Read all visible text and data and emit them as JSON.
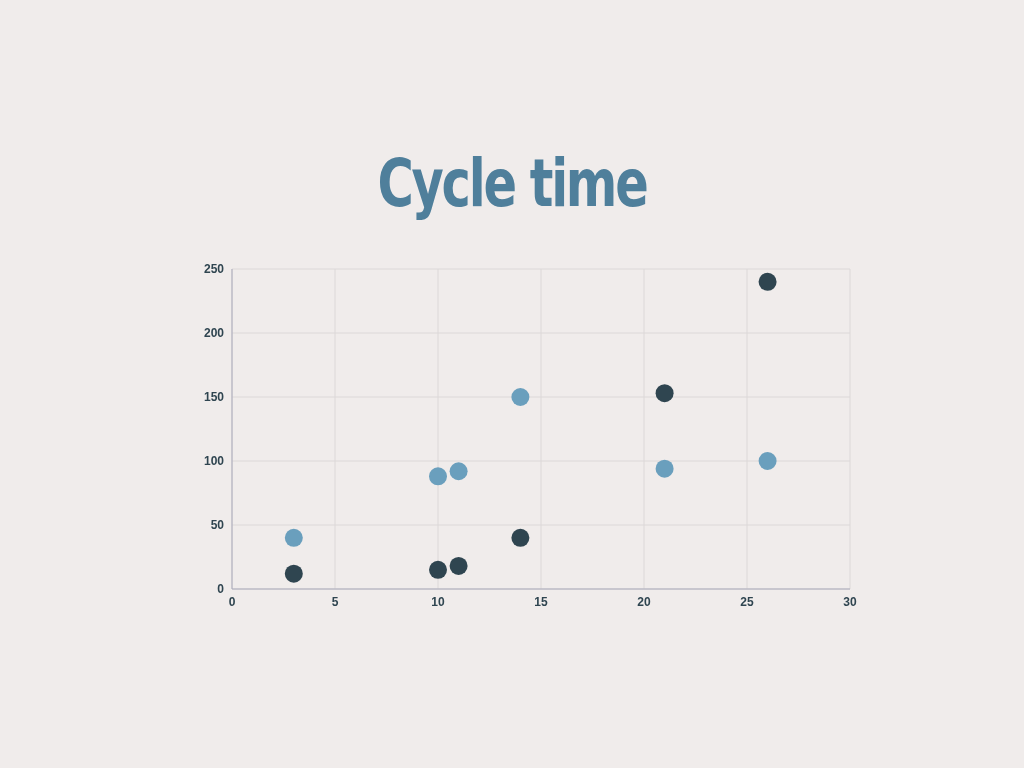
{
  "chart_data": {
    "type": "scatter",
    "title": "Cycle time",
    "series": [
      {
        "color": "#6a9fbd",
        "x": [
          3,
          10,
          11,
          14,
          21,
          26
        ],
        "values": [
          40,
          88,
          92,
          150,
          94,
          100
        ]
      },
      {
        "color": "#2f4550",
        "x": [
          3,
          10,
          11,
          14,
          21,
          26
        ],
        "values": [
          12,
          15,
          18,
          40,
          153,
          240
        ]
      }
    ],
    "xlim": [
      0,
      30
    ],
    "xticks": [
      0,
      5,
      10,
      15,
      20,
      25,
      30
    ],
    "ylim": [
      0,
      250
    ],
    "yticks": [
      0,
      50,
      100,
      150,
      200,
      250
    ],
    "grid": true,
    "legend": false,
    "marker": "circle"
  }
}
